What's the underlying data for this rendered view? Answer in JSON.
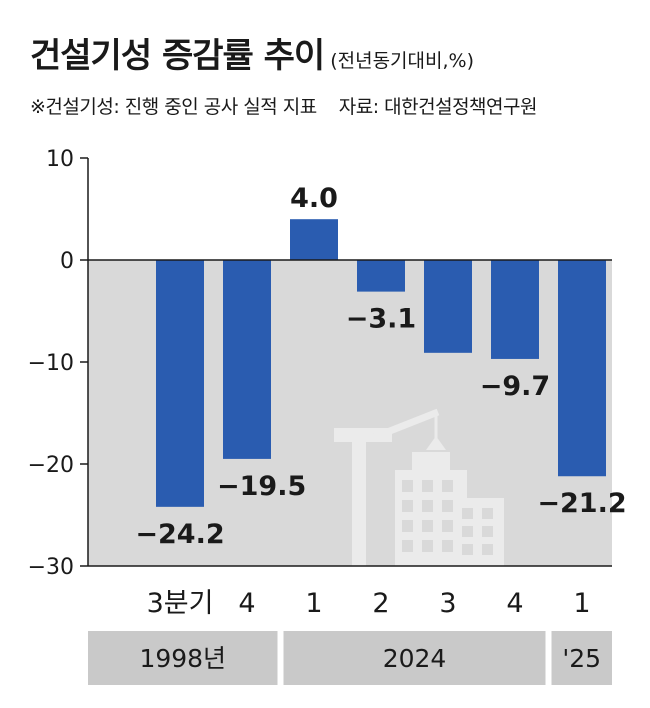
{
  "header": {
    "title": "건설기성 증감률 추이",
    "unit": "(전년동기대비,%)",
    "note": "※건설기성: 진행 중인 공사 실적 지표",
    "source": "자료: 대한건설정책연구원"
  },
  "colors": {
    "bar": "#2a5cb0",
    "plot_bg": "#d9d9d9",
    "group_bg": "#c9c9c9",
    "building": "#ebebeb",
    "axis": "#1a1a1a"
  },
  "chart_data": {
    "type": "bar",
    "categories": [
      "3분기",
      "4",
      "1",
      "2",
      "3",
      "4",
      "1"
    ],
    "groups": [
      {
        "label": "1998년",
        "start": 0,
        "end": 1
      },
      {
        "label": "2024",
        "start": 2,
        "end": 5
      },
      {
        "label": "'25",
        "start": 6,
        "end": 6
      }
    ],
    "values": [
      -24.2,
      -19.5,
      4.0,
      -3.1,
      -9.1,
      -9.7,
      -21.2
    ],
    "data_labels": [
      "−24.2",
      "−19.5",
      "4.0",
      "−3.1",
      "",
      "−9.7",
      "−21.2"
    ],
    "yticks": [
      10,
      0,
      -10,
      -20,
      -30
    ],
    "ytick_labels": [
      "10",
      "0",
      "−10",
      "−20",
      "−30"
    ],
    "ylim": [
      -30,
      10
    ],
    "grid": false,
    "legend": "none"
  }
}
